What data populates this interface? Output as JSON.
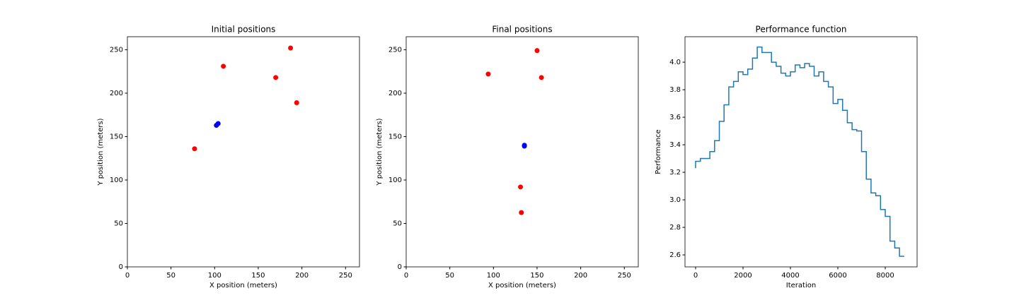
{
  "chart_data": [
    {
      "type": "scatter",
      "title": "Initial positions",
      "x_label": "X position (meters)",
      "y_label": "Y position (meters)",
      "xlim": [
        0,
        266
      ],
      "ylim": [
        0,
        265
      ],
      "xticks": [
        0,
        50,
        100,
        150,
        200,
        250
      ],
      "yticks": [
        0,
        50,
        100,
        150,
        200,
        250
      ],
      "series": [
        {
          "color": "#ff0000",
          "x": [
            77,
            110,
            170,
            187,
            194
          ],
          "y": [
            136,
            231,
            218,
            252,
            189
          ]
        },
        {
          "color": "#0000ff",
          "x": [
            102,
            104
          ],
          "y": [
            163,
            165
          ]
        }
      ]
    },
    {
      "type": "scatter",
      "title": "Final positions",
      "x_label": "X position (meters)",
      "y_label": "Y position (meters)",
      "xlim": [
        0,
        266
      ],
      "ylim": [
        0,
        265
      ],
      "xticks": [
        0,
        50,
        100,
        150,
        200,
        250
      ],
      "yticks": [
        0,
        50,
        100,
        150,
        200,
        250
      ],
      "series": [
        {
          "color": "#ff0000",
          "x": [
            94,
            150,
            155,
            131,
            132
          ],
          "y": [
            222,
            249,
            218,
            92,
            62.5
          ]
        },
        {
          "color": "#0000ff",
          "x": [
            135.5,
            135.5
          ],
          "y": [
            140,
            139
          ]
        }
      ]
    },
    {
      "type": "line",
      "title": "Performance function",
      "x_label": "Iteration",
      "y_label": "Performance",
      "drawstyle": "steps-pre",
      "color": "#1f77b4",
      "xlim": [
        -448,
        9343
      ],
      "ylim": [
        2.513,
        4.185
      ],
      "xticks": [
        0,
        2000,
        4000,
        6000,
        8000
      ],
      "yticks": [
        2.6,
        2.8,
        {
          "value": 3,
          "label": "3.0"
        },
        3.2,
        3.4,
        3.6,
        3.8,
        {
          "value": 4,
          "label": "4.0"
        }
      ],
      "x": [
        0,
        200,
        400,
        600,
        800,
        1000,
        1200,
        1400,
        1600,
        1800,
        2000,
        2200,
        2400,
        2600,
        2800,
        3000,
        3200,
        3400,
        3600,
        3800,
        4000,
        4200,
        4400,
        4600,
        4800,
        5000,
        5200,
        5400,
        5600,
        5800,
        6000,
        6200,
        6400,
        6600,
        6800,
        7000,
        7200,
        7400,
        7600,
        7800,
        8000,
        8200,
        8400,
        8600,
        8800
      ],
      "values": [
        3.23,
        3.28,
        3.3,
        3.3,
        3.35,
        3.43,
        3.57,
        3.69,
        3.82,
        3.86,
        3.93,
        3.91,
        3.95,
        4.03,
        4.11,
        4.07,
        4.07,
        4.0,
        3.97,
        3.92,
        3.9,
        3.93,
        3.98,
        3.96,
        3.99,
        3.97,
        3.9,
        3.93,
        3.86,
        3.82,
        3.7,
        3.73,
        3.65,
        3.56,
        3.51,
        3.5,
        3.35,
        3.15,
        3.05,
        3.03,
        2.93,
        2.88,
        2.7,
        2.65,
        2.59
      ]
    }
  ]
}
